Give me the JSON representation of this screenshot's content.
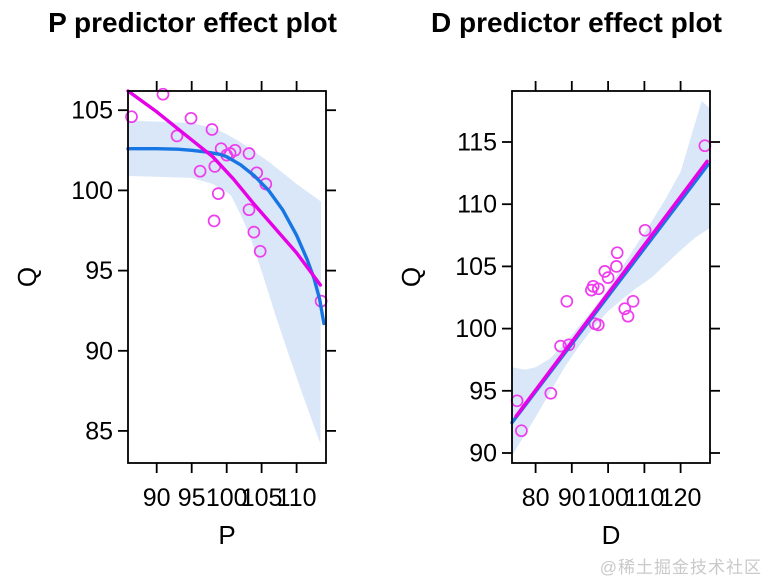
{
  "watermark": "@稀土掘金技术社区",
  "colors": {
    "fit_line": "#1776e3",
    "smooth_line": "#e602e6",
    "point_stroke": "#ee3cee",
    "band": "#d9e7f8",
    "axis": "#000000",
    "watermark_gray": "#c9c9c9"
  },
  "chart_data": [
    {
      "type": "scatter",
      "title": "P predictor effect plot",
      "xlabel": "P",
      "ylabel": "Q",
      "xlim": [
        85.9,
        114.2
      ],
      "ylim": [
        83.0,
        106.2
      ],
      "xticks": [
        90,
        95,
        100,
        105,
        110
      ],
      "yticks": [
        85,
        90,
        95,
        100,
        105
      ],
      "grid": false,
      "legend": false,
      "series_names": {
        "fit_line": "fitted effect",
        "smooth_line": "residual smooth",
        "points": "partial residuals",
        "band": "confidence band"
      },
      "points": [
        [
          90.9,
          106.0
        ],
        [
          86.4,
          104.6
        ],
        [
          94.9,
          104.5
        ],
        [
          97.9,
          103.8
        ],
        [
          92.9,
          103.4
        ],
        [
          99.2,
          102.6
        ],
        [
          100.0,
          102.2
        ],
        [
          100.5,
          102.3
        ],
        [
          101.2,
          102.5
        ],
        [
          103.2,
          102.3
        ],
        [
          96.2,
          101.2
        ],
        [
          98.3,
          101.5
        ],
        [
          104.3,
          101.1
        ],
        [
          105.6,
          100.4
        ],
        [
          98.8,
          99.8
        ],
        [
          103.2,
          98.8
        ],
        [
          98.2,
          98.1
        ],
        [
          103.9,
          97.4
        ],
        [
          104.8,
          96.2
        ],
        [
          113.5,
          93.1
        ]
      ],
      "fit_line": [
        [
          85.9,
          102.6
        ],
        [
          90,
          102.6
        ],
        [
          93,
          102.57
        ],
        [
          95,
          102.5
        ],
        [
          97,
          102.4
        ],
        [
          99,
          102.25
        ],
        [
          100,
          102.1
        ],
        [
          102,
          101.6
        ],
        [
          104,
          100.9
        ],
        [
          106,
          100.0
        ],
        [
          108,
          98.8
        ],
        [
          110,
          97.2
        ],
        [
          111.5,
          95.7
        ],
        [
          112.5,
          94.5
        ],
        [
          113.3,
          93.2
        ],
        [
          113.9,
          91.7
        ]
      ],
      "smooth_line": [
        [
          85.9,
          106.2
        ],
        [
          90,
          104.9
        ],
        [
          94,
          103.5
        ],
        [
          98,
          102.1
        ],
        [
          101,
          100.7
        ],
        [
          104,
          99.1
        ],
        [
          107,
          97.6
        ],
        [
          110,
          96.1
        ],
        [
          113.4,
          94.1
        ]
      ],
      "band_upper": [
        [
          85.9,
          104.35
        ],
        [
          90,
          104.3
        ],
        [
          95,
          104.2
        ],
        [
          98,
          103.9
        ],
        [
          100,
          103.5
        ],
        [
          102,
          103.0
        ],
        [
          104,
          102.4
        ],
        [
          106,
          101.8
        ],
        [
          108,
          101.1
        ],
        [
          110,
          100.4
        ],
        [
          113.5,
          99.3
        ]
      ],
      "band_lower": [
        [
          85.9,
          100.9
        ],
        [
          90,
          100.85
        ],
        [
          95,
          100.78
        ],
        [
          98,
          100.4
        ],
        [
          100,
          99.9
        ],
        [
          100.6,
          99.7
        ],
        [
          102,
          98.5
        ],
        [
          103.3,
          97.2
        ],
        [
          105.2,
          94.7
        ],
        [
          107,
          92.2
        ],
        [
          109,
          89.6
        ],
        [
          111,
          87.1
        ],
        [
          113.4,
          84.2
        ]
      ]
    },
    {
      "type": "scatter",
      "title": "D predictor effect plot",
      "xlabel": "D",
      "ylabel": "Q",
      "xlim": [
        73.5,
        128.1
      ],
      "ylim": [
        89.2,
        119.1
      ],
      "xticks": [
        80,
        90,
        100,
        110,
        120
      ],
      "yticks": [
        90,
        95,
        100,
        105,
        110,
        115
      ],
      "grid": false,
      "legend": false,
      "series_names": {
        "fit_line": "fitted effect",
        "smooth_line": "residual smooth",
        "points": "partial residuals",
        "band": "confidence band"
      },
      "points": [
        [
          126.7,
          114.7
        ],
        [
          110.2,
          107.9
        ],
        [
          102.5,
          106.1
        ],
        [
          102.3,
          105.0
        ],
        [
          99.1,
          104.6
        ],
        [
          100.0,
          104.1
        ],
        [
          95.9,
          103.4
        ],
        [
          97.3,
          103.2
        ],
        [
          95.4,
          103.1
        ],
        [
          88.6,
          102.2
        ],
        [
          106.9,
          102.2
        ],
        [
          104.6,
          101.6
        ],
        [
          105.5,
          101.0
        ],
        [
          96.4,
          100.4
        ],
        [
          97.3,
          100.3
        ],
        [
          86.9,
          98.6
        ],
        [
          89.2,
          98.7
        ],
        [
          84.2,
          94.8
        ],
        [
          74.9,
          94.2
        ],
        [
          76.1,
          91.8
        ]
      ],
      "fit_line": [
        [
          73.5,
          92.45
        ],
        [
          127.6,
          113.2
        ]
      ],
      "smooth_line": [
        [
          74.6,
          92.95
        ],
        [
          127.3,
          113.45
        ]
      ],
      "band_upper": [
        [
          73.5,
          96.9
        ],
        [
          77,
          96.7
        ],
        [
          80,
          96.9
        ],
        [
          84,
          97.6
        ],
        [
          88,
          98.8
        ],
        [
          92,
          100.2
        ],
        [
          96,
          101.6
        ],
        [
          100,
          103.2
        ],
        [
          104,
          105.0
        ],
        [
          108,
          106.8
        ],
        [
          112,
          108.6
        ],
        [
          116,
          110.5
        ],
        [
          120,
          112.6
        ],
        [
          125.8,
          118.3
        ],
        [
          128.1,
          117.7
        ]
      ],
      "band_lower": [
        [
          73.5,
          89.8
        ],
        [
          76,
          91.0
        ],
        [
          80,
          92.9
        ],
        [
          84,
          94.9
        ],
        [
          88,
          96.9
        ],
        [
          92,
          98.6
        ],
        [
          96,
          100.1
        ],
        [
          100,
          101.4
        ],
        [
          104,
          102.4
        ],
        [
          108,
          103.3
        ],
        [
          112,
          104.1
        ],
        [
          116,
          105.2
        ],
        [
          120,
          106.3
        ],
        [
          124,
          107.3
        ],
        [
          128.1,
          108.1
        ]
      ]
    }
  ]
}
